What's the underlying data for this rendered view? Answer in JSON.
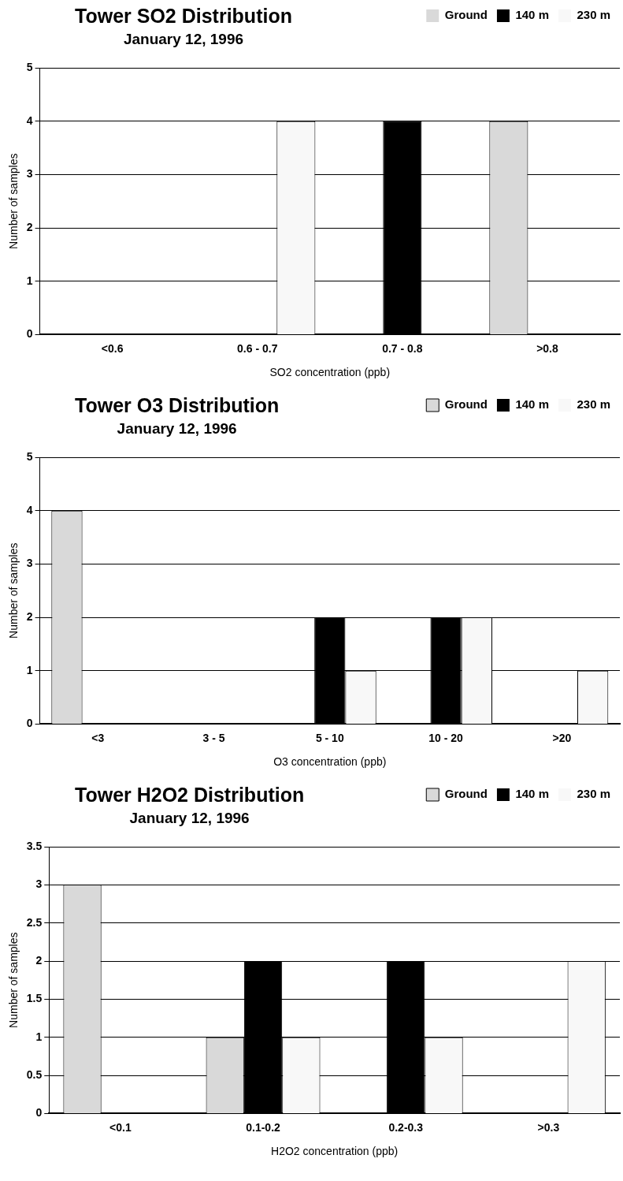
{
  "chart_data": [
    {
      "type": "bar",
      "title": "Tower SO2 Distribution",
      "subtitle": "January 12, 1996",
      "xlabel": "SO2 concentration (ppb)",
      "ylabel": "Number of samples",
      "categories": [
        "<0.6",
        "0.6 - 0.7",
        "0.7 - 0.8",
        ">0.8"
      ],
      "series": [
        {
          "name": "Ground",
          "color": "#d9d9d9",
          "values": [
            0,
            0,
            0,
            4
          ]
        },
        {
          "name": "140 m",
          "color": "#000000",
          "values": [
            0,
            0,
            4,
            0
          ]
        },
        {
          "name": "230 m",
          "color": "#f8f8f8",
          "values": [
            0,
            4,
            0,
            0
          ]
        }
      ],
      "ylim": [
        0,
        5
      ],
      "yticks": [
        0,
        1,
        2,
        3,
        4,
        5
      ],
      "grid": "y",
      "legend": "top right"
    },
    {
      "type": "bar",
      "title": "Tower O3 Distribution",
      "subtitle": "January 12, 1996",
      "xlabel": "O3 concentration (ppb)",
      "ylabel": "Number of samples",
      "categories": [
        "<3",
        "3 - 5",
        "5 - 10",
        "10 - 20",
        ">20"
      ],
      "series": [
        {
          "name": "Ground",
          "color": "#d9d9d9",
          "values": [
            4,
            0,
            0,
            0,
            0
          ]
        },
        {
          "name": "140 m",
          "color": "#000000",
          "values": [
            0,
            0,
            2,
            2,
            0
          ]
        },
        {
          "name": "230 m",
          "color": "#f8f8f8",
          "values": [
            0,
            0,
            1,
            2,
            1
          ]
        }
      ],
      "ylim": [
        0,
        5
      ],
      "yticks": [
        0,
        1,
        2,
        3,
        4,
        5
      ],
      "grid": "y",
      "legend": "top right"
    },
    {
      "type": "bar",
      "title": "Tower H2O2 Distribution",
      "subtitle": "January 12, 1996",
      "xlabel": "H2O2 concentration (ppb)",
      "ylabel": "Number of samples",
      "categories": [
        "<0.1",
        "0.1-0.2",
        "0.2-0.3",
        ">0.3"
      ],
      "series": [
        {
          "name": "Ground",
          "color": "#d9d9d9",
          "values": [
            3,
            1,
            0,
            0
          ]
        },
        {
          "name": "140 m",
          "color": "#000000",
          "values": [
            0,
            2,
            2,
            0
          ]
        },
        {
          "name": "230 m",
          "color": "#f8f8f8",
          "values": [
            0,
            1,
            1,
            2
          ]
        }
      ],
      "ylim": [
        0,
        3.5
      ],
      "yticks": [
        0,
        0.5,
        1,
        1.5,
        2,
        2.5,
        3,
        3.5
      ],
      "grid": "y",
      "legend": "top right"
    }
  ]
}
